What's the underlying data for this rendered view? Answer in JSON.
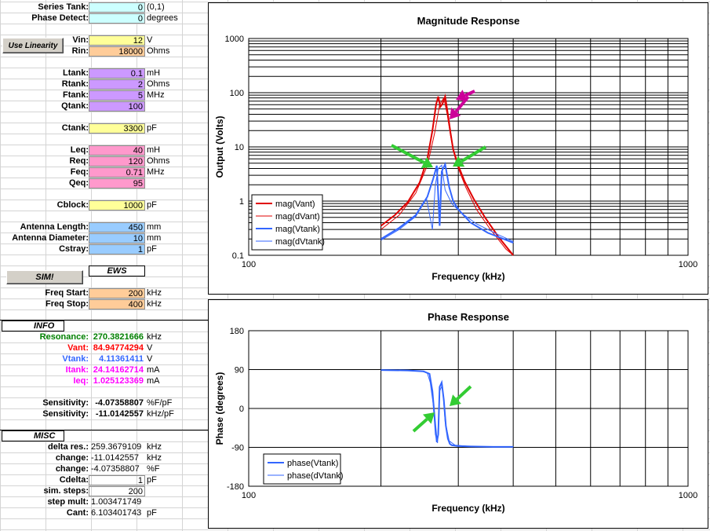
{
  "params": [
    {
      "label": "Series Tank:",
      "value": "0",
      "unit": "(0,1)",
      "color": "c-cyan"
    },
    {
      "label": "Phase Detect:",
      "value": "0",
      "unit": "degrees",
      "color": "c-cyan"
    },
    {
      "label": "Vin:",
      "value": "12",
      "unit": "V",
      "color": "c-yellow"
    },
    {
      "label": "Rin:",
      "value": "18000",
      "unit": "Ohms",
      "color": "c-orange"
    },
    {
      "label": "Ltank:",
      "value": "0.1",
      "unit": "mH",
      "color": "c-purple"
    },
    {
      "label": "Rtank:",
      "value": "2",
      "unit": "Ohms",
      "color": "c-purple"
    },
    {
      "label": "Ftank:",
      "value": "5",
      "unit": "MHz",
      "color": "c-purple"
    },
    {
      "label": "Qtank:",
      "value": "100",
      "unit": "",
      "color": "c-purple"
    },
    {
      "label": "Ctank:",
      "value": "3300",
      "unit": "pF",
      "color": "c-yellow"
    },
    {
      "label": "Leq:",
      "value": "40",
      "unit": "mH",
      "color": "c-pink"
    },
    {
      "label": "Req:",
      "value": "120",
      "unit": "Ohms",
      "color": "c-pink"
    },
    {
      "label": "Feq:",
      "value": "0.71",
      "unit": "MHz",
      "color": "c-pink"
    },
    {
      "label": "Qeq:",
      "value": "95",
      "unit": "",
      "color": "c-pink"
    },
    {
      "label": "Cblock:",
      "value": "1000",
      "unit": "pF",
      "color": "c-yellow"
    },
    {
      "label": "Antenna Length:",
      "value": "450",
      "unit": "mm",
      "color": "c-blue"
    },
    {
      "label": "Antenna Diameter:",
      "value": "10",
      "unit": "mm",
      "color": "c-blue"
    },
    {
      "label": "Cstray:",
      "value": "1",
      "unit": "pF",
      "color": "c-blue"
    },
    {
      "label": "Freq Start:",
      "value": "200",
      "unit": "kHz",
      "color": "c-orange"
    },
    {
      "label": "Freq Stop:",
      "value": "400",
      "unit": "kHz",
      "color": "c-orange"
    }
  ],
  "buttons": {
    "use_linearity": "Use Linearity",
    "sim": "SIM!"
  },
  "ews_label": "EWS",
  "info": {
    "header": "INFO",
    "rows": [
      {
        "label": "Resonance:",
        "value": "270.3821666",
        "unit": "kHz",
        "tone": "green"
      },
      {
        "label": "Vant:",
        "value": "84.94774294",
        "unit": "V",
        "tone": "red"
      },
      {
        "label": "Vtank:",
        "value": "4.11361411",
        "unit": "V",
        "tone": "blue"
      },
      {
        "label": "Itank:",
        "value": "24.14162714",
        "unit": "mA",
        "tone": "magenta"
      },
      {
        "label": "Ieq:",
        "value": "1.025123369",
        "unit": "mA",
        "tone": "magenta"
      },
      {
        "label": "Sensitivity:",
        "value": "-4.07358807",
        "unit": "%F/pF",
        "tone": "bold"
      },
      {
        "label": "Sensitivity:",
        "value": "-11.0142557",
        "unit": "kHz/pF",
        "tone": "bold"
      }
    ]
  },
  "misc": {
    "header": "MISC",
    "rows": [
      {
        "label": "delta res.:",
        "value": "259.3679109",
        "unit": "kHz"
      },
      {
        "label": "change:",
        "value": "-11.0142557",
        "unit": "kHz"
      },
      {
        "label": "change:",
        "value": "-4.07358807",
        "unit": "%F"
      },
      {
        "label": "Cdelta:",
        "value": "1",
        "unit": "pF"
      },
      {
        "label": "sim. steps:",
        "value": "200",
        "unit": ""
      },
      {
        "label": "step mult:",
        "value": "1.003471749",
        "unit": ""
      },
      {
        "label": "Cant:",
        "value": "6.103401743",
        "unit": "pF"
      }
    ]
  },
  "chart_data": [
    {
      "type": "line",
      "title": "Magnitude Response",
      "xlabel": "Frequency (kHz)",
      "ylabel": "Output (Volts)",
      "x_scale": "log",
      "y_scale": "log",
      "xlim": [
        100,
        1000
      ],
      "ylim": [
        0.1,
        1000
      ],
      "xticks": [
        "100",
        "1000"
      ],
      "yticks": [
        "0.1",
        "1",
        "10",
        "100",
        "1000"
      ],
      "grid": true,
      "legend": "bottom-left",
      "series": [
        {
          "name": "mag(Vant)",
          "color": "#e00000",
          "x": [
            200,
            215,
            230,
            245,
            255,
            262,
            267,
            270,
            273,
            276,
            280,
            284,
            288,
            292,
            300,
            310,
            325,
            345,
            370,
            400
          ],
          "y": [
            0.35,
            0.55,
            0.95,
            2.2,
            6,
            20,
            60,
            85,
            55,
            62,
            85,
            40,
            18,
            9,
            4.5,
            2.3,
            1.1,
            0.5,
            0.22,
            0.1
          ]
        },
        {
          "name": "mag(dVant)",
          "color": "#e00000",
          "x": [
            200,
            220,
            240,
            255,
            265,
            272,
            278,
            283,
            288,
            294,
            300,
            312,
            330,
            355,
            385,
            400
          ],
          "y": [
            0.3,
            0.55,
            1.4,
            4.5,
            18,
            60,
            80,
            40,
            16,
            7,
            4,
            1.8,
            0.7,
            0.3,
            0.13,
            0.1
          ]
        },
        {
          "name": "mag(Vtank)",
          "color": "#3366ff",
          "x": [
            200,
            220,
            240,
            255,
            263,
            268,
            272,
            275,
            280,
            286,
            292,
            300,
            320,
            350,
            400
          ],
          "y": [
            0.2,
            0.32,
            0.55,
            1.2,
            2.6,
            4.5,
            0.35,
            3.5,
            4.8,
            1.8,
            1.0,
            0.7,
            0.4,
            0.26,
            0.17
          ]
        },
        {
          "name": "mag(dVtank)",
          "color": "#3366ff",
          "x": [
            200,
            220,
            240,
            254,
            262,
            266,
            270,
            275,
            280,
            290,
            305,
            330,
            370,
            400
          ],
          "y": [
            0.19,
            0.3,
            0.52,
            1.1,
            0.3,
            2.0,
            4.0,
            4.6,
            1.6,
            0.9,
            0.6,
            0.38,
            0.24,
            0.18
          ]
        }
      ]
    },
    {
      "type": "line",
      "title": "Phase Response",
      "xlabel": "Frequency (kHz)",
      "ylabel": "Phase (degrees)",
      "x_scale": "log",
      "xlim": [
        100,
        1000
      ],
      "ylim": [
        -180,
        180
      ],
      "xticks": [
        "100",
        "1000"
      ],
      "yticks": [
        "180",
        "90",
        "0",
        "-90",
        "-180"
      ],
      "grid": true,
      "legend": "bottom-left",
      "series": [
        {
          "name": "phase(Vtank)",
          "color": "#3366ff",
          "x": [
            200,
            230,
            250,
            258,
            262,
            266,
            268,
            270,
            272,
            275,
            278,
            281,
            284,
            287,
            290,
            298,
            320,
            360,
            400
          ],
          "y": [
            89,
            88,
            86,
            80,
            40,
            -40,
            -78,
            -60,
            50,
            60,
            20,
            -40,
            -70,
            -82,
            -85,
            -87,
            -88,
            -89,
            -89
          ]
        },
        {
          "name": "phase(dVtank)",
          "color": "#3366ff",
          "x": [
            200,
            230,
            248,
            255,
            259,
            263,
            266,
            269,
            272,
            276,
            280,
            286,
            295,
            320,
            400
          ],
          "y": [
            89,
            88,
            86,
            82,
            60,
            10,
            -60,
            -80,
            40,
            55,
            -30,
            -75,
            -85,
            -88,
            -89
          ]
        }
      ]
    }
  ],
  "annotation_colors": {
    "magenta": "#cc0099",
    "green": "#33cc33"
  }
}
